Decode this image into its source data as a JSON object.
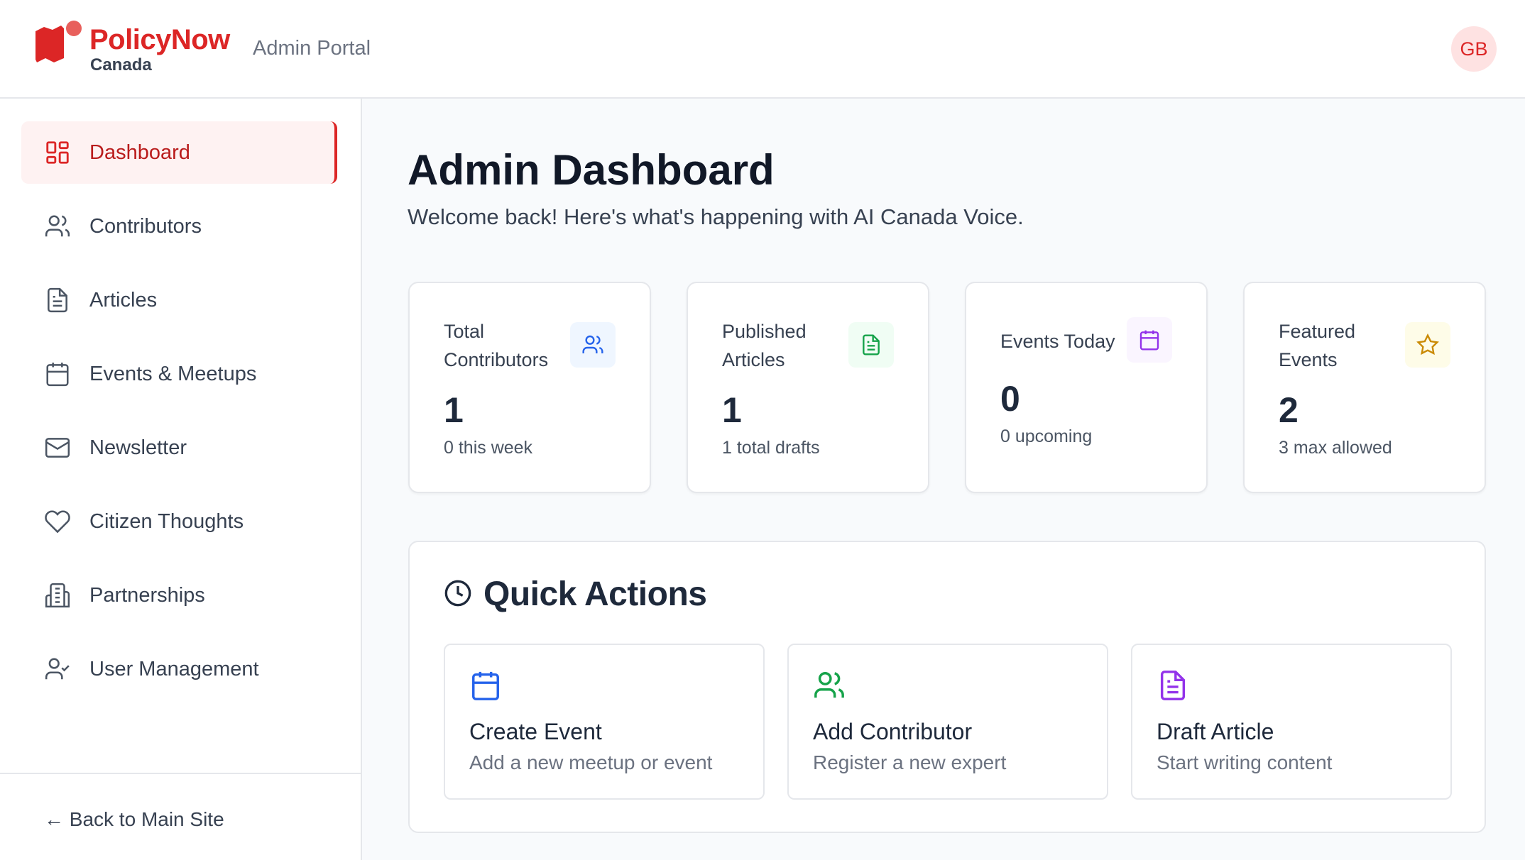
{
  "header": {
    "brand": "PolicyNow",
    "brand_sub": "Canada",
    "portal": "Admin Portal",
    "avatar_initials": "GB",
    "accent": "#dc2626"
  },
  "sidebar": {
    "items": [
      {
        "label": "Dashboard",
        "icon": "grid-icon",
        "active": true
      },
      {
        "label": "Contributors",
        "icon": "users-icon"
      },
      {
        "label": "Articles",
        "icon": "file-text-icon"
      },
      {
        "label": "Events & Meetups",
        "icon": "calendar-icon"
      },
      {
        "label": "Newsletter",
        "icon": "mail-icon"
      },
      {
        "label": "Citizen Thoughts",
        "icon": "heart-icon"
      },
      {
        "label": "Partnerships",
        "icon": "building-icon"
      },
      {
        "label": "User Management",
        "icon": "user-check-icon"
      }
    ],
    "back": "← Back to Main Site"
  },
  "main": {
    "title": "Admin Dashboard",
    "subtitle": "Welcome back! Here's what's happening with AI Canada Voice.",
    "stats": [
      {
        "label": "Total Contributors",
        "value": "1",
        "sub": "0 this week",
        "icon": "users-icon",
        "color": "#2563eb"
      },
      {
        "label": "Published Articles",
        "value": "1",
        "sub": "1 total drafts",
        "icon": "file-text-icon",
        "color": "#16a34a"
      },
      {
        "label": "Events Today",
        "value": "0",
        "sub": "0 upcoming",
        "icon": "calendar-icon",
        "color": "#9333ea"
      },
      {
        "label": "Featured Events",
        "value": "2",
        "sub": "3 max allowed",
        "icon": "star-icon",
        "color": "#ca8a04"
      }
    ],
    "quick_actions": {
      "title": "Quick Actions",
      "items": [
        {
          "title": "Create Event",
          "desc": "Add a new meetup or event",
          "icon": "calendar-icon",
          "color": "#2563eb"
        },
        {
          "title": "Add Contributor",
          "desc": "Register a new expert",
          "icon": "users-icon",
          "color": "#16a34a"
        },
        {
          "title": "Draft Article",
          "desc": "Start writing content",
          "icon": "file-text-icon",
          "color": "#9333ea"
        }
      ]
    }
  }
}
